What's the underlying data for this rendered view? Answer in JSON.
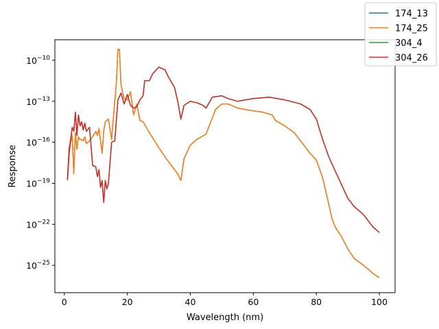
{
  "chart_data": {
    "type": "line",
    "title": "",
    "xlabel": "Wavelength (nm)",
    "ylabel": "Response",
    "xlim": [
      -3,
      105
    ],
    "ylim_log10": [
      -27,
      -8.5
    ],
    "yscale": "log",
    "grid": false,
    "legend_placement": "top-right",
    "x_ticks": [
      {
        "value": 0,
        "label": "0"
      },
      {
        "value": 20,
        "label": "20"
      },
      {
        "value": 40,
        "label": "40"
      },
      {
        "value": 60,
        "label": "60"
      },
      {
        "value": 80,
        "label": "80"
      },
      {
        "value": 100,
        "label": "100"
      }
    ],
    "y_ticks": [
      {
        "exp": -10,
        "base": "10",
        "sup": "−10"
      },
      {
        "exp": -13,
        "base": "10",
        "sup": "−13"
      },
      {
        "exp": -16,
        "base": "10",
        "sup": "−16"
      },
      {
        "exp": -19,
        "base": "10",
        "sup": "−19"
      },
      {
        "exp": -22,
        "base": "10",
        "sup": "−22"
      },
      {
        "exp": -25,
        "base": "10",
        "sup": "−25"
      }
    ],
    "series": [
      {
        "name": "174_13",
        "color": "#1f77b4",
        "x": [
          1,
          1.5,
          2,
          2.5,
          3,
          3.5,
          4,
          4.5,
          5,
          5.5,
          6,
          6.5,
          7,
          8,
          9,
          10,
          10.5,
          11,
          12,
          12.5,
          13,
          14,
          15,
          16,
          16.5,
          17,
          17.5,
          18,
          19,
          20,
          21,
          22,
          23,
          24,
          25,
          27,
          30,
          33,
          36,
          37,
          38,
          40,
          42,
          45,
          47,
          48,
          50,
          52,
          55,
          60,
          63,
          66,
          67,
          70,
          73,
          76,
          78,
          80,
          82,
          84,
          85,
          86,
          88,
          90,
          92,
          95,
          98,
          100
        ],
        "log10": [
          -18.8,
          -17,
          -16,
          -15.5,
          -18.3,
          -15.3,
          -16.5,
          -15.6,
          -15.8,
          -15.8,
          -15.9,
          -15.6,
          -16.1,
          -15.9,
          -15.6,
          -15.2,
          -15.5,
          -15.0,
          -16.8,
          -15.2,
          -14.5,
          -14.3,
          -15.8,
          -13.0,
          -11.7,
          -9.2,
          -9.2,
          -11.8,
          -12.8,
          -12.9,
          -12.3,
          -14.0,
          -13.2,
          -14.4,
          -14.5,
          -15.3,
          -16.4,
          -17.4,
          -18.3,
          -18.8,
          -17.2,
          -16.2,
          -15.8,
          -15.4,
          -14.2,
          -13.6,
          -13.2,
          -13.2,
          -13.5,
          -13.7,
          -13.8,
          -14.0,
          -14.4,
          -14.8,
          -15.3,
          -16.2,
          -16.8,
          -17.3,
          -18.6,
          -20.6,
          -21.6,
          -22.2,
          -22.9,
          -23.8,
          -24.5,
          -25.0,
          -25.6,
          -25.9
        ]
      },
      {
        "name": "174_25",
        "color": "#ff7f0e",
        "x": [
          1,
          1.5,
          2,
          2.5,
          3,
          3.5,
          4,
          4.5,
          5,
          5.5,
          6,
          6.5,
          7,
          8,
          9,
          10,
          10.5,
          11,
          12,
          12.5,
          13,
          14,
          15,
          16,
          16.5,
          17,
          17.5,
          18,
          19,
          20,
          21,
          22,
          23,
          24,
          25,
          27,
          30,
          33,
          36,
          37,
          38,
          40,
          42,
          45,
          47,
          48,
          50,
          52,
          55,
          60,
          63,
          66,
          67,
          70,
          73,
          76,
          78,
          80,
          82,
          84,
          85,
          86,
          88,
          90,
          92,
          95,
          98,
          100
        ],
        "log10": [
          -18.8,
          -17,
          -16,
          -15.5,
          -18.3,
          -15.3,
          -16.5,
          -15.6,
          -15.8,
          -15.8,
          -15.9,
          -15.6,
          -16.1,
          -15.9,
          -15.6,
          -15.2,
          -15.5,
          -15.0,
          -16.8,
          -15.2,
          -14.5,
          -14.3,
          -15.8,
          -13.0,
          -11.7,
          -9.2,
          -9.2,
          -11.8,
          -12.8,
          -12.9,
          -12.3,
          -14.0,
          -13.2,
          -14.4,
          -14.5,
          -15.3,
          -16.4,
          -17.4,
          -18.3,
          -18.8,
          -17.2,
          -16.2,
          -15.8,
          -15.4,
          -14.2,
          -13.6,
          -13.2,
          -13.2,
          -13.5,
          -13.7,
          -13.8,
          -14.0,
          -14.4,
          -14.8,
          -15.3,
          -16.2,
          -16.8,
          -17.3,
          -18.6,
          -20.6,
          -21.6,
          -22.2,
          -22.9,
          -23.8,
          -24.5,
          -25.0,
          -25.6,
          -25.9
        ]
      },
      {
        "name": "304_4",
        "color": "#2ca02c",
        "x": [
          1,
          1.5,
          2,
          2.5,
          3,
          3.5,
          4,
          4.5,
          5,
          5.5,
          6,
          6.5,
          7,
          8,
          9,
          10,
          10.5,
          11,
          11.5,
          12,
          12.5,
          13,
          13.5,
          14,
          15,
          16,
          17,
          18,
          19,
          20,
          21,
          22,
          23,
          24,
          25,
          25.5,
          27,
          28,
          30,
          32,
          33,
          35,
          36,
          37,
          38,
          40,
          42,
          44,
          45,
          47,
          50,
          52,
          55,
          60,
          65,
          70,
          75,
          78,
          80,
          82,
          84,
          86,
          88,
          90,
          92,
          95,
          98,
          100
        ],
        "log10": [
          -18.7,
          -16.5,
          -15.8,
          -14.9,
          -15.2,
          -13.8,
          -15.5,
          -14.0,
          -14.8,
          -14.5,
          -15.1,
          -14.6,
          -15.2,
          -14.9,
          -17.7,
          -17.8,
          -18.5,
          -18.0,
          -19.3,
          -18.8,
          -20.4,
          -18.8,
          -19.4,
          -19.0,
          -16.0,
          -15.9,
          -12.9,
          -12.4,
          -13.2,
          -12.5,
          -13.3,
          -13.5,
          -13.4,
          -12.9,
          -12.6,
          -11.5,
          -11.5,
          -11.0,
          -10.5,
          -10.7,
          -11.2,
          -12.0,
          -13.0,
          -14.3,
          -13.3,
          -13.0,
          -13.1,
          -13.3,
          -13.5,
          -12.7,
          -12.6,
          -12.8,
          -13.0,
          -12.8,
          -12.7,
          -12.9,
          -13.2,
          -13.6,
          -14.3,
          -15.8,
          -17.1,
          -18.1,
          -19.1,
          -20.1,
          -20.7,
          -21.3,
          -22.2,
          -22.6
        ]
      },
      {
        "name": "304_26",
        "color": "#d62728",
        "x": [
          1,
          1.5,
          2,
          2.5,
          3,
          3.5,
          4,
          4.5,
          5,
          5.5,
          6,
          6.5,
          7,
          8,
          9,
          10,
          10.5,
          11,
          11.5,
          12,
          12.5,
          13,
          13.5,
          14,
          15,
          16,
          17,
          18,
          19,
          20,
          21,
          22,
          23,
          24,
          25,
          25.5,
          27,
          28,
          30,
          32,
          33,
          35,
          36,
          37,
          38,
          40,
          42,
          44,
          45,
          47,
          50,
          52,
          55,
          60,
          65,
          70,
          75,
          78,
          80,
          82,
          84,
          86,
          88,
          90,
          92,
          95,
          98,
          100
        ],
        "log10": [
          -18.7,
          -16.5,
          -15.8,
          -14.9,
          -15.2,
          -13.8,
          -15.5,
          -14.0,
          -14.8,
          -14.5,
          -15.1,
          -14.6,
          -15.2,
          -14.9,
          -17.7,
          -17.8,
          -18.5,
          -18.0,
          -19.3,
          -18.8,
          -20.4,
          -18.8,
          -19.4,
          -19.0,
          -16.0,
          -15.9,
          -12.9,
          -12.4,
          -13.2,
          -12.5,
          -13.3,
          -13.5,
          -13.4,
          -12.9,
          -12.6,
          -11.5,
          -11.5,
          -11.0,
          -10.5,
          -10.7,
          -11.2,
          -12.0,
          -13.0,
          -14.3,
          -13.3,
          -13.0,
          -13.1,
          -13.3,
          -13.5,
          -12.7,
          -12.6,
          -12.8,
          -13.0,
          -12.8,
          -12.7,
          -12.9,
          -13.2,
          -13.6,
          -14.3,
          -15.8,
          -17.1,
          -18.1,
          -19.1,
          -20.1,
          -20.7,
          -21.3,
          -22.2,
          -22.6
        ]
      }
    ]
  }
}
